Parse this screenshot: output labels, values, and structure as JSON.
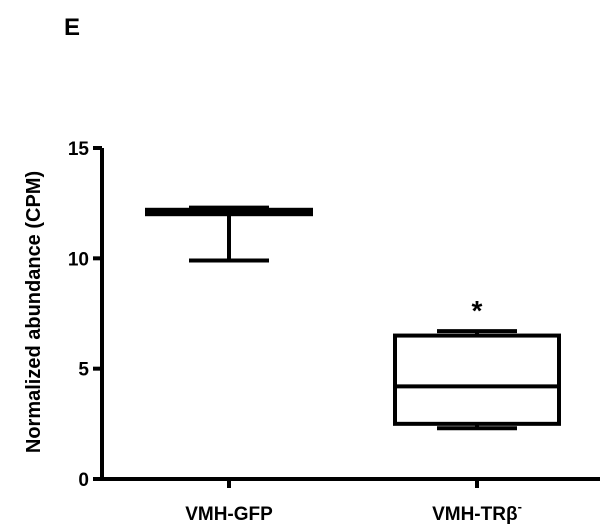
{
  "panel_label": "E",
  "chart_data": {
    "type": "box",
    "ylabel": "Normalized abundance (CPM)",
    "xlabel": "",
    "ylim": [
      0,
      15
    ],
    "yticks": [
      0,
      5,
      10,
      15
    ],
    "ytick_labels": [
      "0",
      "5",
      "10",
      "15"
    ],
    "categories": [
      "VMH-GFP",
      "VMH-TRβ"
    ],
    "category_superscripts": [
      "",
      "-"
    ],
    "boxes": [
      {
        "category": "VMH-GFP",
        "min": 9.9,
        "q1": 12.0,
        "median": 12.1,
        "q3": 12.2,
        "max": 12.3
      },
      {
        "category": "VMH-TRβ",
        "min": 2.3,
        "q1": 2.5,
        "median": 4.2,
        "q3": 6.5,
        "max": 6.7
      }
    ],
    "annotations": [
      {
        "category": "VMH-TRβ",
        "text": "*",
        "y": 8.2
      }
    ],
    "colors": {
      "stroke": "#000000",
      "fill": "#ffffff"
    }
  }
}
